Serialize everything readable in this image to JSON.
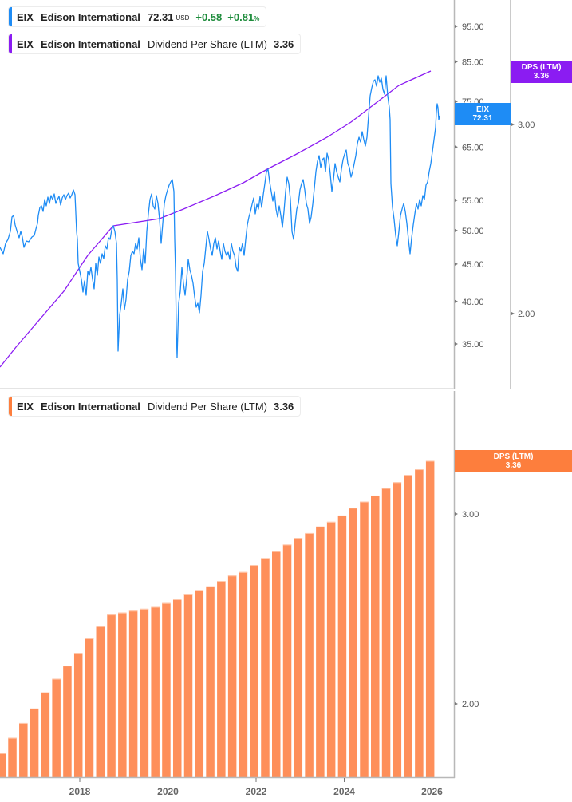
{
  "upper_panel": {
    "legend_price": {
      "symbol": "EIX",
      "name": "Edison International",
      "price": "72.31",
      "currency": "USD",
      "change": "+0.58",
      "change_pct": "+0.81",
      "pct_sign": "%",
      "accent": "#1e8cf5"
    },
    "legend_dps": {
      "symbol": "EIX",
      "name": "Edison International",
      "metric": "Dividend Per Share (LTM)",
      "value": "3.36",
      "accent": "#8b1cf2"
    },
    "price_axis_ticks": [
      "95.00",
      "85.00",
      "75.00",
      "65.00",
      "55.00",
      "50.00",
      "45.00",
      "40.00",
      "35.00"
    ],
    "dps_axis_ticks": [
      "3.00",
      "2.00"
    ],
    "price_tag": {
      "label": "EIX",
      "value": "72.31",
      "color": "#1e8cf5"
    },
    "dps_tag": {
      "label": "DPS (LTM)",
      "value": "3.36",
      "color": "#8b1cf2"
    }
  },
  "lower_panel": {
    "legend_dps": {
      "symbol": "EIX",
      "name": "Edison International",
      "metric": "Dividend Per Share (LTM)",
      "value": "3.36",
      "accent": "#fd7e3d"
    },
    "axis_ticks": [
      "3.00",
      "2.00"
    ],
    "dps_tag": {
      "label": "DPS (LTM)",
      "value": "3.36",
      "color": "#fd7e3d"
    },
    "bar_color": "#fe8f5a"
  },
  "x_axis_ticks": [
    "2018",
    "2020",
    "2022",
    "2024",
    "2026"
  ],
  "chart_data": [
    {
      "type": "line",
      "title": "EIX Edison International price vs Dividend Per Share (LTM)",
      "series": [
        {
          "name": "EIX price (USD)",
          "last": 72.31,
          "change": 0.58,
          "change_pct": 0.81,
          "approx_points": [
            [
              "2016.5",
              48
            ],
            [
              "2017.0",
              53
            ],
            [
              "2017.5",
              56
            ],
            [
              "2017.9",
              57
            ],
            [
              "2018.0",
              45
            ],
            [
              "2018.5",
              46
            ],
            [
              "2018.8",
              50
            ],
            [
              "2019.0",
              36
            ],
            [
              "2019.2",
              44
            ],
            [
              "2019.6",
              52
            ],
            [
              "2019.9",
              57
            ],
            [
              "2020.2",
              36
            ],
            [
              "2020.4",
              45
            ],
            [
              "2020.7",
              42
            ],
            [
              "2021.0",
              45
            ],
            [
              "2021.5",
              48
            ],
            [
              "2021.9",
              55
            ],
            [
              "2022.3",
              62
            ],
            [
              "2022.6",
              52
            ],
            [
              "2023.0",
              56
            ],
            [
              "2023.5",
              62
            ],
            [
              "2023.9",
              55
            ],
            [
              "2024.3",
              70
            ],
            [
              "2024.6",
              80
            ],
            [
              "2024.9",
              82
            ],
            [
              "2025.0",
              73
            ],
            [
              "2025.1",
              56
            ],
            [
              "2025.3",
              50
            ],
            [
              "2025.6",
              54
            ],
            [
              "2026.0",
              63
            ],
            [
              "2026.1",
              74
            ],
            [
              "2026.15",
              72.31
            ]
          ]
        },
        {
          "name": "Dividend Per Share (LTM)",
          "last": 3.36,
          "approx_points": [
            [
              "2016.5",
              1.8
            ],
            [
              "2018.0",
              2.3
            ],
            [
              "2018.75",
              2.42
            ],
            [
              "2019.5",
              2.46
            ],
            [
              "2020.5",
              2.55
            ],
            [
              "2021.5",
              2.65
            ],
            [
              "2022.5",
              2.81
            ],
            [
              "2023.5",
              2.95
            ],
            [
              "2024.5",
              3.12
            ],
            [
              "2025.5",
              3.26
            ],
            [
              "2026.0",
              3.36
            ]
          ]
        }
      ],
      "price_axis": {
        "ticks": [
          35,
          40,
          45,
          50,
          55,
          65,
          75,
          85,
          95
        ],
        "scale": "log"
      },
      "dps_axis": {
        "ticks": [
          2.0,
          3.0
        ],
        "scale": "log"
      }
    },
    {
      "type": "bar",
      "title": "EIX Dividend Per Share (LTM)",
      "scale": "log",
      "xticks": [
        "2018",
        "2020",
        "2022",
        "2024",
        "2026"
      ],
      "ylim": [
        1.75,
        3.45
      ],
      "values": [
        1.8,
        1.86,
        1.92,
        1.98,
        2.05,
        2.11,
        2.17,
        2.23,
        2.3,
        2.36,
        2.42,
        2.43,
        2.44,
        2.45,
        2.46,
        2.48,
        2.5,
        2.53,
        2.55,
        2.57,
        2.6,
        2.63,
        2.65,
        2.69,
        2.73,
        2.77,
        2.81,
        2.85,
        2.88,
        2.92,
        2.95,
        2.99,
        3.04,
        3.08,
        3.12,
        3.17,
        3.21,
        3.26,
        3.3,
        3.36
      ]
    }
  ]
}
